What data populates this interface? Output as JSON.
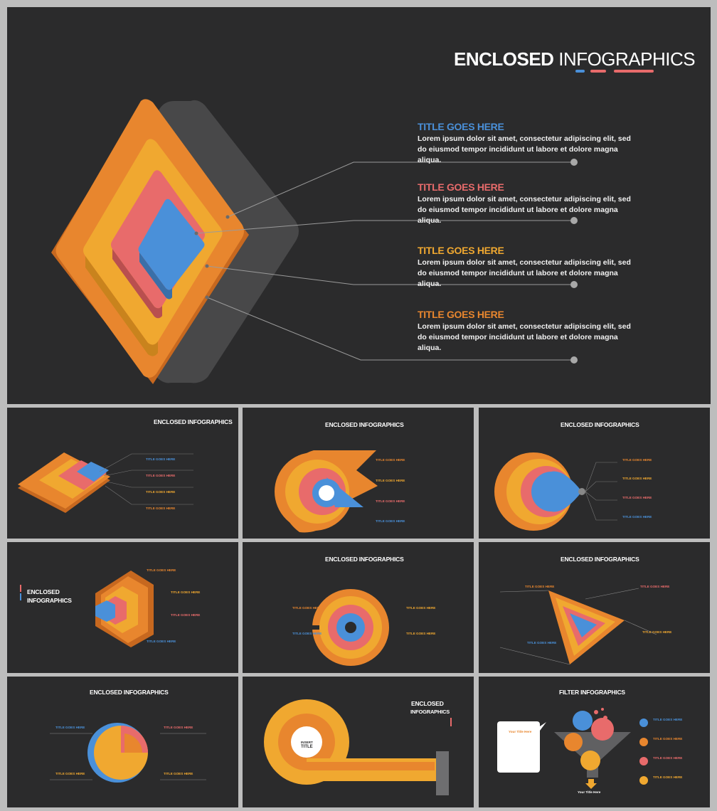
{
  "colors": {
    "blue": "#4a90d9",
    "pink": "#e86b6b",
    "yellow": "#f0a830",
    "orange": "#e8862e",
    "bg": "#2b2b2c",
    "grey": "#6e6e70"
  },
  "hero": {
    "title_bold": "ENCLOSED",
    "title_light": " INFOGRAPHICS",
    "items": [
      {
        "title": "TITLE GOES HERE",
        "body": "Lorem ipsum dolor sit amet, consectetur adipiscing elit, sed do eiusmod tempor incididunt ut labore et dolore magna aliqua."
      },
      {
        "title": "TITLE GOES HERE",
        "body": "Lorem ipsum dolor sit amet, consectetur adipiscing elit, sed do eiusmod tempor incididunt ut labore et dolore magna aliqua."
      },
      {
        "title": "TITLE GOES HERE",
        "body": "Lorem ipsum dolor sit amet, consectetur adipiscing elit, sed do eiusmod tempor incididunt ut labore et dolore magna aliqua."
      },
      {
        "title": "TITLE GOES HERE",
        "body": "Lorem ipsum dolor sit amet, consectetur adipiscing elit, sed do eiusmod tempor incididunt ut labore et dolore magna aliqua."
      }
    ]
  },
  "thumbs": {
    "enclosed_title": "ENCLOSED INFOGRAPHICS",
    "enclosed_word": "ENCLOSED",
    "infographics_word": "INFOGRAPHICS",
    "filter_title": "FILTER INFOGRAPHICS",
    "item_label": "TITLE GOES HERE",
    "insert_title": "INSERT TITLE",
    "insert": "INSERT",
    "title_word": "TITLE",
    "your_title_here": "Your Title Here"
  }
}
